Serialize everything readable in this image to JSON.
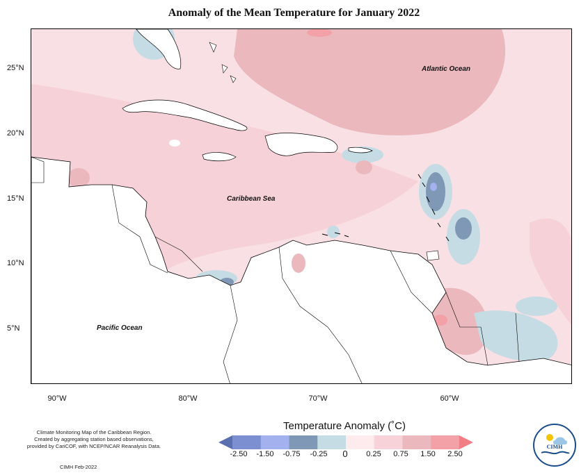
{
  "title": "Anomaly of the Mean Temperature for January 2022",
  "axes": {
    "y_ticks": [
      "25°N",
      "20°N",
      "15°N",
      "10°N",
      "5°N"
    ],
    "x_ticks": [
      "90°W",
      "80°W",
      "70°W",
      "60°W"
    ]
  },
  "labels": {
    "atlantic": "Atlantic Ocean",
    "caribbean": "Caribbean Sea",
    "pacific": "Pacific Ocean"
  },
  "legend": {
    "title": "Temperature Anomaly (˚C)",
    "values": [
      "-2.50",
      "-1.50",
      "-0.75",
      "-0.25",
      "0",
      "0.25",
      "0.75",
      "1.50",
      "2.50"
    ],
    "colors": [
      "#5a6fae",
      "#7c8fd0",
      "#a3b1ef",
      "#7f98b6",
      "#c5dce4",
      "#fdebee",
      "#f7d3d9",
      "#eab8bd",
      "#f3a1a7",
      "#f27e85"
    ]
  },
  "credit": {
    "line1": "Climate Monitoring Map of the Caribbean Region.",
    "line2": "Created by aggregating station based observations,",
    "line3": "provided by CariCOF, with NCEP/NCAR Reanalysis Data.",
    "date": "CIMH Feb-2022"
  },
  "logo": {
    "text": "CIMH"
  }
}
